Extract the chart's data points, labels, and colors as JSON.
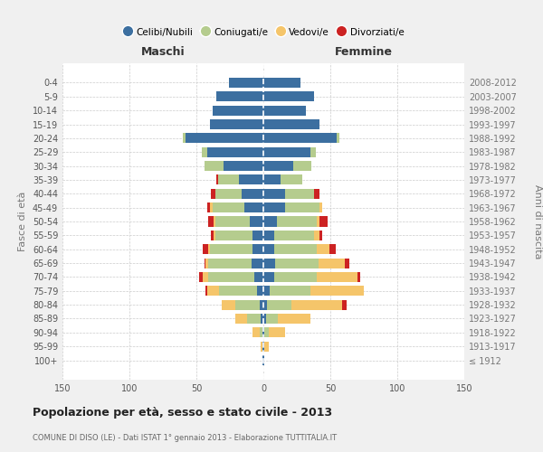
{
  "age_groups": [
    "100+",
    "95-99",
    "90-94",
    "85-89",
    "80-84",
    "75-79",
    "70-74",
    "65-69",
    "60-64",
    "55-59",
    "50-54",
    "45-49",
    "40-44",
    "35-39",
    "30-34",
    "25-29",
    "20-24",
    "15-19",
    "10-14",
    "5-9",
    "0-4"
  ],
  "birth_years": [
    "≤ 1912",
    "1913-1917",
    "1918-1922",
    "1923-1927",
    "1928-1932",
    "1933-1937",
    "1938-1942",
    "1943-1947",
    "1948-1952",
    "1953-1957",
    "1958-1962",
    "1963-1967",
    "1968-1972",
    "1973-1977",
    "1978-1982",
    "1983-1987",
    "1988-1992",
    "1993-1997",
    "1998-2002",
    "2003-2007",
    "2008-2012"
  ],
  "maschi_celibi": [
    1,
    1,
    1,
    2,
    3,
    5,
    7,
    9,
    8,
    8,
    10,
    14,
    16,
    18,
    30,
    42,
    58,
    40,
    38,
    35,
    26
  ],
  "maschi_coniugati": [
    0,
    0,
    2,
    10,
    18,
    28,
    34,
    32,
    32,
    28,
    26,
    24,
    20,
    16,
    14,
    4,
    2,
    0,
    0,
    0,
    0
  ],
  "maschi_vedovi": [
    0,
    1,
    5,
    9,
    10,
    9,
    4,
    2,
    1,
    1,
    1,
    2,
    0,
    0,
    0,
    0,
    0,
    0,
    0,
    0,
    0
  ],
  "maschi_divorziati": [
    0,
    0,
    0,
    0,
    0,
    1,
    3,
    1,
    4,
    2,
    4,
    2,
    3,
    1,
    0,
    0,
    0,
    0,
    0,
    0,
    0
  ],
  "femmine_nubili": [
    1,
    1,
    1,
    2,
    3,
    5,
    8,
    9,
    8,
    8,
    10,
    16,
    16,
    13,
    22,
    35,
    55,
    42,
    32,
    38,
    28
  ],
  "femmine_coniugate": [
    0,
    0,
    3,
    9,
    18,
    30,
    32,
    32,
    32,
    30,
    30,
    26,
    22,
    16,
    14,
    4,
    2,
    0,
    0,
    0,
    0
  ],
  "femmine_vedove": [
    0,
    3,
    12,
    24,
    38,
    40,
    30,
    20,
    9,
    4,
    2,
    2,
    0,
    0,
    0,
    0,
    0,
    0,
    0,
    0,
    0
  ],
  "femmine_divorziate": [
    0,
    0,
    0,
    0,
    3,
    0,
    2,
    3,
    5,
    2,
    6,
    0,
    4,
    0,
    0,
    0,
    0,
    0,
    0,
    0,
    0
  ],
  "color_celibi": "#3c6fa0",
  "color_coniugati": "#b5cc8e",
  "color_vedovi": "#f5c56a",
  "color_divorziati": "#cc2222",
  "title": "Popolazione per età, sesso e stato civile - 2013",
  "subtitle": "COMUNE DI DISO (LE) - Dati ISTAT 1° gennaio 2013 - Elaborazione TUTTITALIA.IT",
  "legend_labels": [
    "Celibi/Nubili",
    "Coniugati/e",
    "Vedovi/e",
    "Divorziati/e"
  ],
  "ylabel_left": "Fasce di età",
  "ylabel_right": "Anni di nascita",
  "label_maschi": "Maschi",
  "label_femmine": "Femmine",
  "xlim": 150,
  "bg_color": "#f0f0f0",
  "plot_bg": "#ffffff"
}
